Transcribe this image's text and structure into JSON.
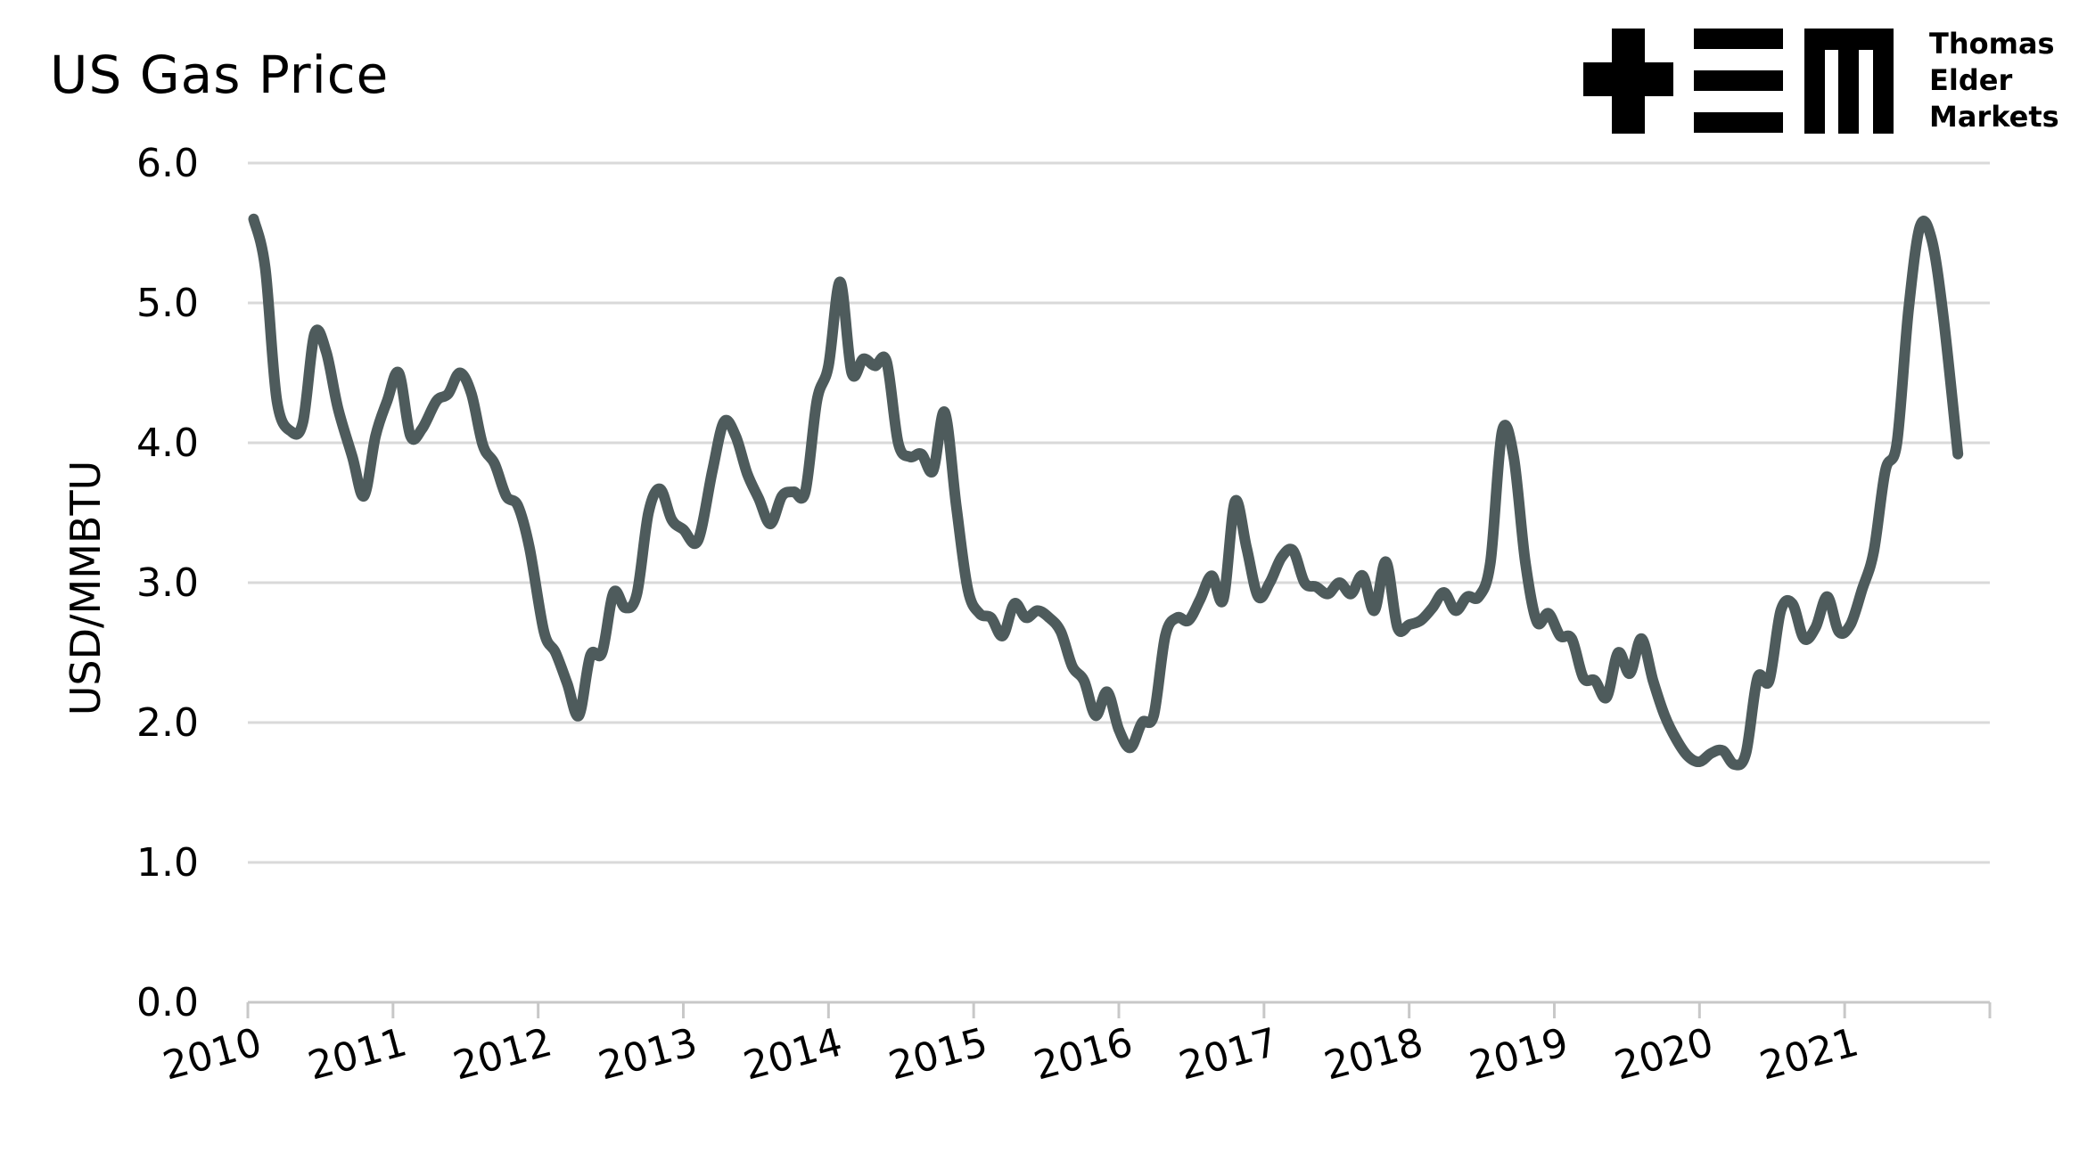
{
  "chart_data": {
    "type": "line",
    "title": "US Gas Price",
    "ylabel": "USD/MMBTU",
    "xlabel": "",
    "ylim": [
      0,
      6
    ],
    "yticks": [
      "0.0",
      "1.0",
      "2.0",
      "3.0",
      "4.0",
      "5.0",
      "6.0"
    ],
    "xlim": [
      2010,
      2022
    ],
    "xticks": [
      "2010",
      "2011",
      "2012",
      "2013",
      "2014",
      "2015",
      "2016",
      "2017",
      "2018",
      "2019",
      "2020",
      "2021"
    ],
    "grid": true,
    "line_color": "#4e5b5c",
    "series": [
      {
        "points": [
          [
            2010.04,
            5.6
          ],
          [
            2010.12,
            5.25
          ],
          [
            2010.2,
            4.3
          ],
          [
            2010.3,
            4.08
          ],
          [
            2010.38,
            4.15
          ],
          [
            2010.46,
            4.78
          ],
          [
            2010.54,
            4.65
          ],
          [
            2010.62,
            4.25
          ],
          [
            2010.72,
            3.9
          ],
          [
            2010.8,
            3.62
          ],
          [
            2010.88,
            4.05
          ],
          [
            2010.96,
            4.3
          ],
          [
            2011.04,
            4.5
          ],
          [
            2011.12,
            4.05
          ],
          [
            2011.2,
            4.1
          ],
          [
            2011.3,
            4.3
          ],
          [
            2011.38,
            4.35
          ],
          [
            2011.46,
            4.5
          ],
          [
            2011.54,
            4.35
          ],
          [
            2011.62,
            3.98
          ],
          [
            2011.7,
            3.85
          ],
          [
            2011.78,
            3.62
          ],
          [
            2011.86,
            3.55
          ],
          [
            2011.94,
            3.25
          ],
          [
            2012.04,
            2.65
          ],
          [
            2012.12,
            2.5
          ],
          [
            2012.2,
            2.28
          ],
          [
            2012.28,
            2.05
          ],
          [
            2012.36,
            2.48
          ],
          [
            2012.44,
            2.5
          ],
          [
            2012.52,
            2.93
          ],
          [
            2012.6,
            2.82
          ],
          [
            2012.68,
            2.92
          ],
          [
            2012.76,
            3.5
          ],
          [
            2012.84,
            3.67
          ],
          [
            2012.92,
            3.45
          ],
          [
            2013.0,
            3.38
          ],
          [
            2013.1,
            3.3
          ],
          [
            2013.2,
            3.8
          ],
          [
            2013.28,
            4.15
          ],
          [
            2013.36,
            4.05
          ],
          [
            2013.44,
            3.78
          ],
          [
            2013.52,
            3.6
          ],
          [
            2013.6,
            3.42
          ],
          [
            2013.68,
            3.62
          ],
          [
            2013.76,
            3.65
          ],
          [
            2013.84,
            3.65
          ],
          [
            2013.92,
            4.3
          ],
          [
            2014.0,
            4.55
          ],
          [
            2014.08,
            5.15
          ],
          [
            2014.16,
            4.5
          ],
          [
            2014.24,
            4.6
          ],
          [
            2014.32,
            4.55
          ],
          [
            2014.4,
            4.58
          ],
          [
            2014.48,
            4.0
          ],
          [
            2014.56,
            3.9
          ],
          [
            2014.64,
            3.92
          ],
          [
            2014.72,
            3.8
          ],
          [
            2014.8,
            4.22
          ],
          [
            2014.88,
            3.55
          ],
          [
            2014.96,
            2.95
          ],
          [
            2015.04,
            2.78
          ],
          [
            2015.12,
            2.75
          ],
          [
            2015.2,
            2.62
          ],
          [
            2015.28,
            2.85
          ],
          [
            2015.36,
            2.75
          ],
          [
            2015.44,
            2.8
          ],
          [
            2015.52,
            2.75
          ],
          [
            2015.6,
            2.65
          ],
          [
            2015.68,
            2.4
          ],
          [
            2015.76,
            2.3
          ],
          [
            2015.84,
            2.05
          ],
          [
            2015.92,
            2.22
          ],
          [
            2016.0,
            1.95
          ],
          [
            2016.08,
            1.82
          ],
          [
            2016.16,
            2.0
          ],
          [
            2016.24,
            2.05
          ],
          [
            2016.32,
            2.62
          ],
          [
            2016.4,
            2.75
          ],
          [
            2016.48,
            2.73
          ],
          [
            2016.56,
            2.88
          ],
          [
            2016.64,
            3.05
          ],
          [
            2016.72,
            2.88
          ],
          [
            2016.8,
            3.58
          ],
          [
            2016.88,
            3.25
          ],
          [
            2016.96,
            2.9
          ],
          [
            2017.04,
            3.0
          ],
          [
            2017.12,
            3.18
          ],
          [
            2017.2,
            3.23
          ],
          [
            2017.28,
            3.0
          ],
          [
            2017.36,
            2.97
          ],
          [
            2017.44,
            2.92
          ],
          [
            2017.52,
            3.0
          ],
          [
            2017.6,
            2.92
          ],
          [
            2017.68,
            3.05
          ],
          [
            2017.76,
            2.8
          ],
          [
            2017.84,
            3.15
          ],
          [
            2017.92,
            2.68
          ],
          [
            2018.0,
            2.7
          ],
          [
            2018.08,
            2.73
          ],
          [
            2018.16,
            2.82
          ],
          [
            2018.24,
            2.93
          ],
          [
            2018.32,
            2.8
          ],
          [
            2018.4,
            2.9
          ],
          [
            2018.48,
            2.9
          ],
          [
            2018.56,
            3.15
          ],
          [
            2018.64,
            4.08
          ],
          [
            2018.72,
            3.9
          ],
          [
            2018.8,
            3.15
          ],
          [
            2018.88,
            2.72
          ],
          [
            2018.96,
            2.78
          ],
          [
            2019.04,
            2.62
          ],
          [
            2019.12,
            2.6
          ],
          [
            2019.2,
            2.32
          ],
          [
            2019.28,
            2.3
          ],
          [
            2019.36,
            2.18
          ],
          [
            2019.44,
            2.5
          ],
          [
            2019.52,
            2.35
          ],
          [
            2019.6,
            2.6
          ],
          [
            2019.68,
            2.3
          ],
          [
            2019.76,
            2.05
          ],
          [
            2019.84,
            1.88
          ],
          [
            2019.92,
            1.76
          ],
          [
            2020.0,
            1.72
          ],
          [
            2020.08,
            1.78
          ],
          [
            2020.16,
            1.8
          ],
          [
            2020.24,
            1.7
          ],
          [
            2020.32,
            1.78
          ],
          [
            2020.4,
            2.32
          ],
          [
            2020.48,
            2.3
          ],
          [
            2020.56,
            2.8
          ],
          [
            2020.64,
            2.85
          ],
          [
            2020.72,
            2.6
          ],
          [
            2020.8,
            2.68
          ],
          [
            2020.88,
            2.9
          ],
          [
            2020.96,
            2.65
          ],
          [
            2021.04,
            2.7
          ],
          [
            2021.12,
            2.95
          ],
          [
            2021.2,
            3.22
          ],
          [
            2021.28,
            3.8
          ],
          [
            2021.36,
            4.0
          ],
          [
            2021.44,
            4.95
          ],
          [
            2021.52,
            5.55
          ],
          [
            2021.6,
            5.45
          ],
          [
            2021.68,
            4.9
          ],
          [
            2021.78,
            3.92
          ]
        ]
      }
    ]
  },
  "logo": {
    "line1": "Thomas",
    "line2": "Elder",
    "line3": "Markets"
  }
}
